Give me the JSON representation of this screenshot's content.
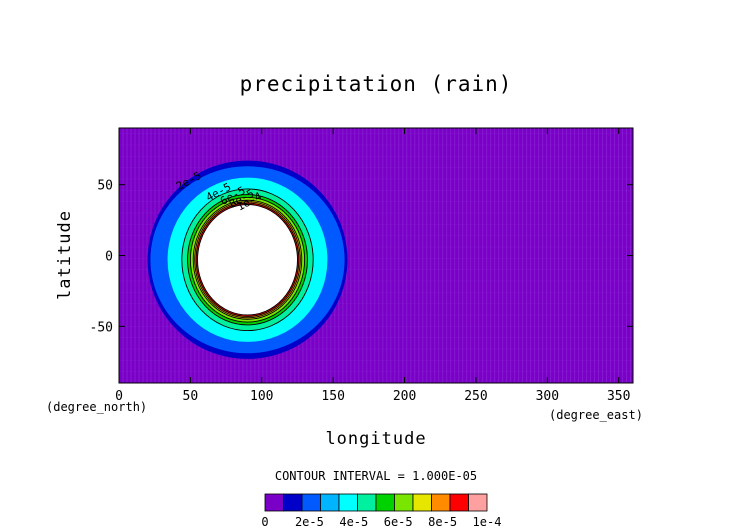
{
  "chart_data": {
    "type": "heatmap",
    "title": "precipitation (rain)",
    "xlabel": "longitude",
    "ylabel": "latitude",
    "x_unit": "(degree_east)",
    "y_unit": "(degree_north)",
    "xlim": [
      0,
      360
    ],
    "ylim": [
      -90,
      90
    ],
    "xticks": [
      0,
      50,
      100,
      150,
      200,
      250,
      300,
      350
    ],
    "yticks": [
      -50,
      0,
      50
    ],
    "xtick_labels": [
      "0",
      "50",
      "100",
      "150",
      "200",
      "250",
      "300",
      "350"
    ],
    "ytick_labels": [
      "-50",
      "0",
      "50"
    ],
    "contour_interval_label": "CONTOUR INTERVAL = 1.000E-05",
    "colorbar": {
      "levels": [
        0,
        1e-05,
        2e-05,
        3e-05,
        4e-05,
        5e-05,
        6e-05,
        7e-05,
        8e-05,
        9e-05,
        0.0001
      ],
      "colors": [
        "#7a00c8",
        "#0000c8",
        "#005aff",
        "#00b4ff",
        "#00ffff",
        "#00f0a0",
        "#00d200",
        "#78e600",
        "#e6e600",
        "#ff8c00",
        "#ff0000",
        "#ffa0a0"
      ],
      "tick_labels": [
        "0",
        "2e-5",
        "4e-5",
        "6e-5",
        "8e-5",
        "1e-4"
      ],
      "tick_values": [
        0,
        2e-05,
        4e-05,
        6e-05,
        8e-05,
        0.0001
      ]
    },
    "contour_labels": [
      "2e-5",
      "4e-5",
      "6e-5",
      "8e-5",
      "1e-4"
    ],
    "background_color": "#7a00c8",
    "field": {
      "center_lon": 90,
      "center_lat": -3,
      "rings": [
        {
          "level": 1e-05,
          "rx_deg": 70,
          "ry_deg": 70,
          "color": "#0000c8"
        },
        {
          "level": 2e-05,
          "rx_deg": 68,
          "ry_deg": 66,
          "color": "#005aff"
        },
        {
          "level": 3e-05,
          "rx_deg": 56,
          "ry_deg": 58,
          "color": "#00ffff"
        },
        {
          "level": 4e-05,
          "rx_deg": 46,
          "ry_deg": 50,
          "color": "#00f0a0"
        },
        {
          "level": 5e-05,
          "rx_deg": 42,
          "ry_deg": 46,
          "color": "#00d200"
        },
        {
          "level": 6e-05,
          "rx_deg": 40,
          "ry_deg": 44,
          "color": "#78e600"
        },
        {
          "level": 7e-05,
          "rx_deg": 38,
          "ry_deg": 42,
          "color": "#e6e600"
        },
        {
          "level": 8e-05,
          "rx_deg": 37,
          "ry_deg": 41,
          "color": "#ff8c00"
        },
        {
          "level": 9e-05,
          "rx_deg": 36,
          "ry_deg": 40,
          "color": "#ff0000"
        },
        {
          "level": 0.0001,
          "rx_deg": 35,
          "ry_deg": 39,
          "color": "#ffffff"
        }
      ]
    }
  }
}
